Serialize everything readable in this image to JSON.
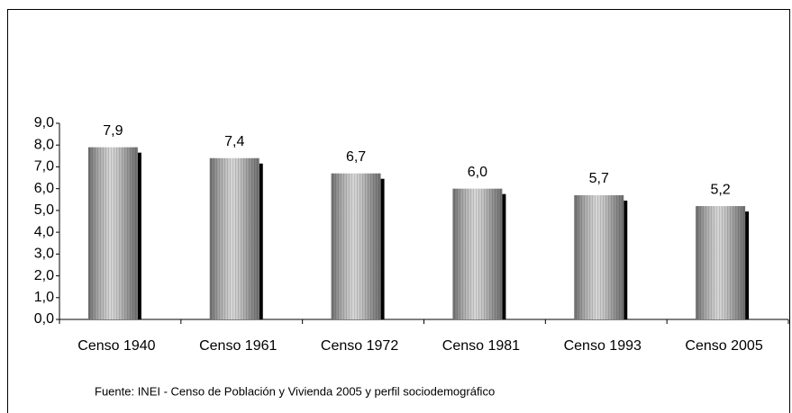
{
  "chart_data": {
    "type": "bar",
    "categories": [
      "Censo 1940",
      "Censo 1961",
      "Censo 1972",
      "Censo 1981",
      "Censo 1993",
      "Censo 2005"
    ],
    "values": [
      7.9,
      7.4,
      6.7,
      6.0,
      5.7,
      5.2
    ],
    "value_labels": [
      "7,9",
      "7,4",
      "6,7",
      "6,0",
      "5,7",
      "5,2"
    ],
    "color": "#9a9a9a",
    "ylim": [
      0,
      9
    ],
    "yticks": [
      {
        "value": 0,
        "label": "0,0"
      },
      {
        "value": 1,
        "label": "1,0"
      },
      {
        "value": 2,
        "label": "2,0"
      },
      {
        "value": 3,
        "label": "3,0"
      },
      {
        "value": 4,
        "label": "4,0"
      },
      {
        "value": 5,
        "label": "5,0"
      },
      {
        "value": 6,
        "label": "6,0"
      },
      {
        "value": 7,
        "label": "7,0"
      },
      {
        "value": 8,
        "label": "8,0"
      },
      {
        "value": 9,
        "label": "9,0"
      }
    ],
    "grid": false,
    "note": "Fuente: INEI - Censo de Población y Vivienda 2005 y perfil sociodemográfico"
  }
}
